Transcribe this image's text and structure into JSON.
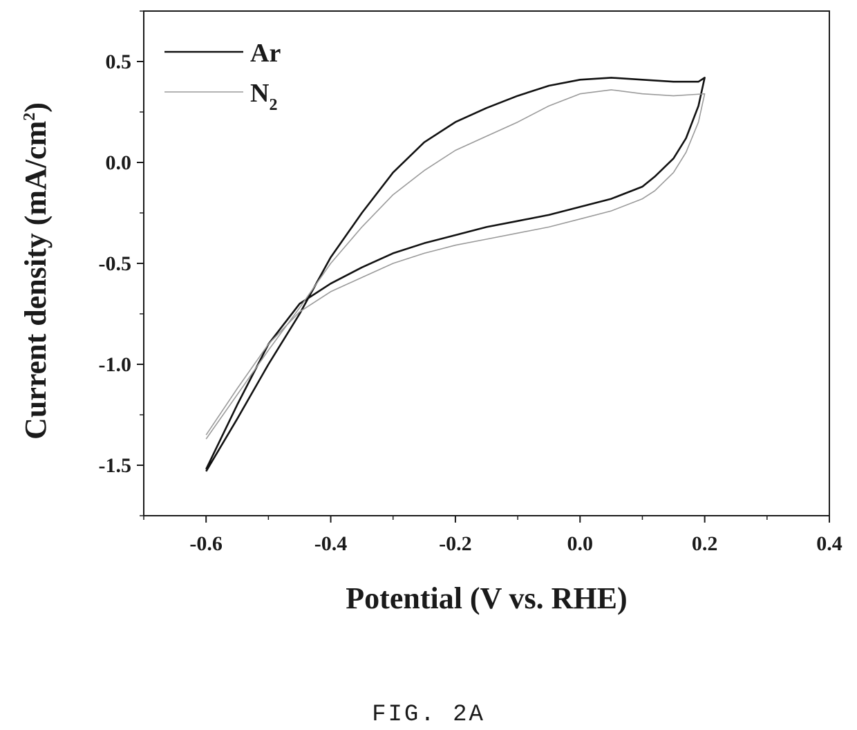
{
  "figure_label": "FIG. 2A",
  "chart_data": {
    "type": "line",
    "xlabel": "Potential (V vs. RHE)",
    "ylabel": "Current density (mA/cm²)",
    "ylabel_main": "Current density (mA/cm",
    "ylabel_sup": "2",
    "ylabel_tail": ")",
    "xlim": [
      -0.7,
      0.4
    ],
    "ylim": [
      -1.75,
      0.75
    ],
    "x_ticks": [
      -0.6,
      -0.4,
      -0.2,
      0.0,
      0.2,
      0.4
    ],
    "x_tick_labels": [
      "-0.6",
      "-0.4",
      "-0.2",
      "0.0",
      "0.2",
      "0.4"
    ],
    "y_ticks": [
      0.5,
      0.0,
      -0.5,
      -1.0,
      -1.5
    ],
    "y_tick_labels": [
      "0.5",
      "0.0",
      "-0.5",
      "-1.0",
      "-1.5"
    ],
    "legend": {
      "position": "top-left"
    },
    "series": [
      {
        "name": "Ar",
        "legend_main": "Ar",
        "legend_sub": "",
        "color": "#111111",
        "points": [
          [
            -0.6,
            -1.53
          ],
          [
            -0.55,
            -1.27
          ],
          [
            -0.5,
            -1.0
          ],
          [
            -0.45,
            -0.75
          ],
          [
            -0.4,
            -0.47
          ],
          [
            -0.35,
            -0.25
          ],
          [
            -0.3,
            -0.05
          ],
          [
            -0.25,
            0.1
          ],
          [
            -0.2,
            0.2
          ],
          [
            -0.15,
            0.27
          ],
          [
            -0.1,
            0.33
          ],
          [
            -0.05,
            0.38
          ],
          [
            0.0,
            0.41
          ],
          [
            0.05,
            0.42
          ],
          [
            0.1,
            0.41
          ],
          [
            0.15,
            0.4
          ],
          [
            0.19,
            0.4
          ],
          [
            0.2,
            0.42
          ],
          [
            0.19,
            0.28
          ],
          [
            0.17,
            0.12
          ],
          [
            0.15,
            0.02
          ],
          [
            0.12,
            -0.07
          ],
          [
            0.1,
            -0.12
          ],
          [
            0.05,
            -0.18
          ],
          [
            0.0,
            -0.22
          ],
          [
            -0.05,
            -0.26
          ],
          [
            -0.1,
            -0.29
          ],
          [
            -0.15,
            -0.32
          ],
          [
            -0.2,
            -0.36
          ],
          [
            -0.25,
            -0.4
          ],
          [
            -0.3,
            -0.45
          ],
          [
            -0.35,
            -0.52
          ],
          [
            -0.4,
            -0.6
          ],
          [
            -0.45,
            -0.7
          ],
          [
            -0.5,
            -0.9
          ],
          [
            -0.55,
            -1.2
          ],
          [
            -0.6,
            -1.52
          ]
        ]
      },
      {
        "name": "N2",
        "legend_main": "N",
        "legend_sub": "2",
        "color": "#9a9a9a",
        "points": [
          [
            -0.6,
            -1.37
          ],
          [
            -0.55,
            -1.15
          ],
          [
            -0.5,
            -0.93
          ],
          [
            -0.45,
            -0.72
          ],
          [
            -0.4,
            -0.5
          ],
          [
            -0.35,
            -0.32
          ],
          [
            -0.3,
            -0.16
          ],
          [
            -0.25,
            -0.04
          ],
          [
            -0.2,
            0.06
          ],
          [
            -0.15,
            0.13
          ],
          [
            -0.1,
            0.2
          ],
          [
            -0.05,
            0.28
          ],
          [
            0.0,
            0.34
          ],
          [
            0.05,
            0.36
          ],
          [
            0.1,
            0.34
          ],
          [
            0.15,
            0.33
          ],
          [
            0.2,
            0.34
          ],
          [
            0.19,
            0.2
          ],
          [
            0.17,
            0.05
          ],
          [
            0.15,
            -0.05
          ],
          [
            0.12,
            -0.14
          ],
          [
            0.1,
            -0.18
          ],
          [
            0.05,
            -0.24
          ],
          [
            0.0,
            -0.28
          ],
          [
            -0.05,
            -0.32
          ],
          [
            -0.1,
            -0.35
          ],
          [
            -0.15,
            -0.38
          ],
          [
            -0.2,
            -0.41
          ],
          [
            -0.25,
            -0.45
          ],
          [
            -0.3,
            -0.5
          ],
          [
            -0.35,
            -0.57
          ],
          [
            -0.4,
            -0.64
          ],
          [
            -0.45,
            -0.74
          ],
          [
            -0.5,
            -0.9
          ],
          [
            -0.55,
            -1.12
          ],
          [
            -0.6,
            -1.35
          ]
        ]
      }
    ]
  }
}
